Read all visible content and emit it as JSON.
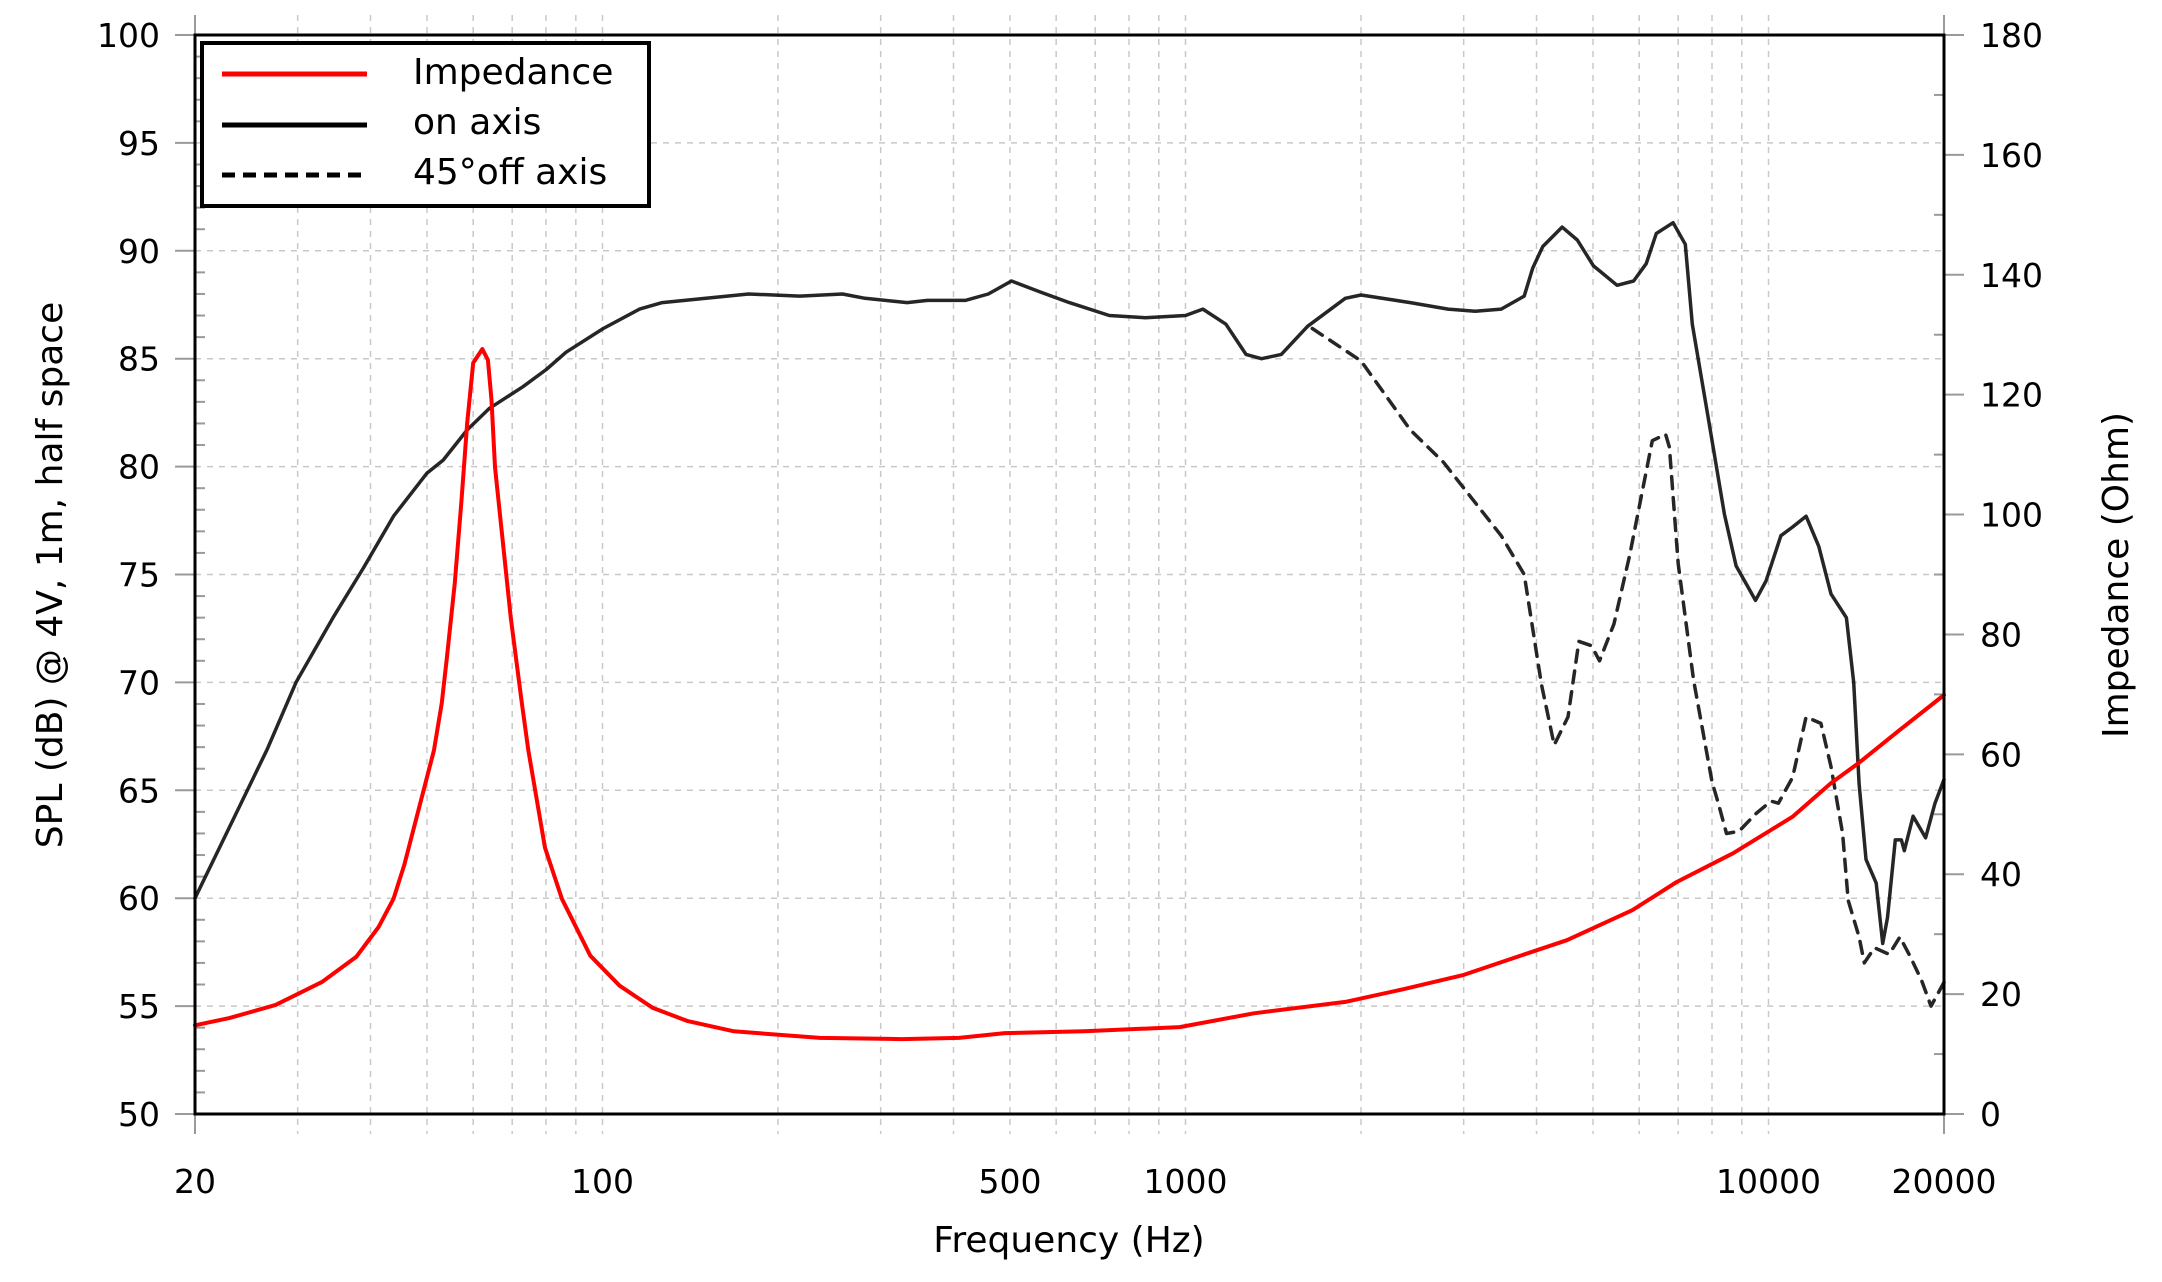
{
  "chart_data": {
    "type": "line",
    "title": "",
    "xlabel": "Frequency (Hz)",
    "ylabel": "SPL (dB) @ 4V, 1m, half space",
    "ylabel_right": "Impedance (Ohm)",
    "x_scale": "log",
    "xlim": [
      20,
      20000
    ],
    "ylim": [
      50,
      100
    ],
    "ylim_right": [
      0,
      180
    ],
    "grid": true,
    "legend_position": "upper left",
    "x_ticks": [
      20,
      100,
      500,
      1000,
      10000,
      20000
    ],
    "x_tick_labels": [
      "20",
      "100",
      "500",
      "1000",
      "10000",
      "20000"
    ],
    "y_ticks": [
      50,
      55,
      60,
      65,
      70,
      75,
      80,
      85,
      90,
      95,
      100
    ],
    "y_tick_labels": [
      "50",
      "55",
      "60",
      "65",
      "70",
      "75",
      "80",
      "85",
      "90",
      "95",
      "100"
    ],
    "y_right_ticks": [
      0,
      20,
      40,
      60,
      80,
      100,
      120,
      140,
      160,
      180
    ],
    "y_right_tick_labels": [
      "0",
      "20",
      "40",
      "60",
      "80",
      "100",
      "120",
      "140",
      "160",
      "180"
    ],
    "series": [
      {
        "name": "Impedance",
        "axis": "right",
        "color": "#ff0000",
        "style": "solid",
        "x": [
          20,
          22.9,
          27.5,
          33,
          37.8,
          41.3,
          43.8,
          45.7,
          51.4,
          53,
          54.1,
          55.8,
          57.3,
          58.6,
          60,
          62.2,
          63.6,
          64.5,
          65.4,
          67.4,
          69.6,
          72.6,
          74.6,
          79.7,
          85.2,
          95.3,
          107,
          122,
          140,
          168,
          236,
          326,
          409,
          490,
          670,
          977,
          1310,
          1880,
          2360,
          3000,
          3780,
          4510,
          5840,
          6960,
          8700,
          11000,
          12800,
          14300,
          16800,
          20000
        ],
        "values": [
          14.8,
          16.0,
          18.2,
          22.0,
          26.2,
          31.2,
          35.9,
          41.5,
          60.7,
          68.6,
          76.3,
          88.6,
          102.4,
          115.3,
          125.3,
          127.6,
          125.8,
          119.1,
          107.9,
          95.8,
          82.9,
          69.1,
          60.7,
          44.4,
          35.9,
          26.4,
          21.4,
          17.7,
          15.5,
          13.8,
          12.7,
          12.5,
          12.7,
          13.5,
          13.8,
          14.5,
          16.8,
          18.7,
          20.8,
          23.2,
          26.5,
          29.0,
          34.0,
          38.7,
          43.5,
          49.6,
          55.2,
          58.6,
          64.1,
          69.9
        ]
      },
      {
        "name": "on axis",
        "axis": "left",
        "color": "#000000",
        "style": "solid",
        "x": [
          20,
          26.6,
          29.8,
          34.5,
          38.9,
          43.8,
          50,
          53.3,
          58.6,
          64,
          73,
          80.1,
          86.6,
          100.3,
          115.8,
          126.6,
          178,
          218,
          258,
          282,
          333,
          361,
          419,
          459,
          503,
          562,
          632,
          740,
          853,
          1000,
          1071,
          1173,
          1270,
          1350,
          1460,
          1620,
          1880,
          2000,
          2430,
          2820,
          3140,
          3480,
          3810,
          3940,
          4100,
          4425,
          4700,
          5010,
          5500,
          5870,
          6170,
          6420,
          6860,
          7200,
          7400,
          7900,
          8400,
          8800,
          9500,
          9900,
          10500,
          11000,
          11600,
          12200,
          12800,
          13600,
          14000,
          14300,
          14700,
          15300,
          15700,
          16000,
          16500,
          16900,
          17100,
          17700,
          18600,
          19300,
          20000
        ],
        "values": [
          60.0,
          66.9,
          70.0,
          73.0,
          75.3,
          77.7,
          79.7,
          80.3,
          81.7,
          82.7,
          83.7,
          84.5,
          85.3,
          86.4,
          87.3,
          87.6,
          88.0,
          87.9,
          88.0,
          87.8,
          87.6,
          87.7,
          87.7,
          88.0,
          88.6,
          88.1,
          87.6,
          87.0,
          86.9,
          87.0,
          87.3,
          86.6,
          85.2,
          85.0,
          85.2,
          86.5,
          87.8,
          87.95,
          87.6,
          87.3,
          87.2,
          87.3,
          87.9,
          89.2,
          90.2,
          91.1,
          90.5,
          89.3,
          88.4,
          88.6,
          89.4,
          90.8,
          91.3,
          90.3,
          86.6,
          82.1,
          77.8,
          75.4,
          73.8,
          74.7,
          76.8,
          77.2,
          77.7,
          76.3,
          74.1,
          73.0,
          70.0,
          65.3,
          61.8,
          60.7,
          57.9,
          59.1,
          62.7,
          62.7,
          62.2,
          63.8,
          62.8,
          64.4,
          65.5
        ]
      },
      {
        "name": "45°off axis",
        "axis": "left",
        "color": "#000000",
        "style": "dashed",
        "x": [
          1650,
          2000,
          2430,
          2770,
          3480,
          3810,
          4080,
          4290,
          4530,
          4730,
          4970,
          5130,
          5430,
          5780,
          6320,
          6660,
          6760,
          7000,
          7440,
          8000,
          8200,
          8470,
          8900,
          9500,
          10100,
          10400,
          11000,
          11600,
          12300,
          12800,
          13400,
          13700,
          14300,
          14600,
          15200,
          16100,
          16800,
          17500,
          18300,
          19000,
          20000
        ],
        "values": [
          86.4,
          84.9,
          81.7,
          80.2,
          76.8,
          75.0,
          69.9,
          67.1,
          68.4,
          71.9,
          71.7,
          71.0,
          72.7,
          75.9,
          81.2,
          81.5,
          80.9,
          75.5,
          70.1,
          65.4,
          64.4,
          63.0,
          63.1,
          63.9,
          64.5,
          64.4,
          65.6,
          68.4,
          68.1,
          66.1,
          63.0,
          59.9,
          58.2,
          57.0,
          57.7,
          57.4,
          58.2,
          57.3,
          56.2,
          55.0,
          56.1
        ]
      }
    ]
  }
}
